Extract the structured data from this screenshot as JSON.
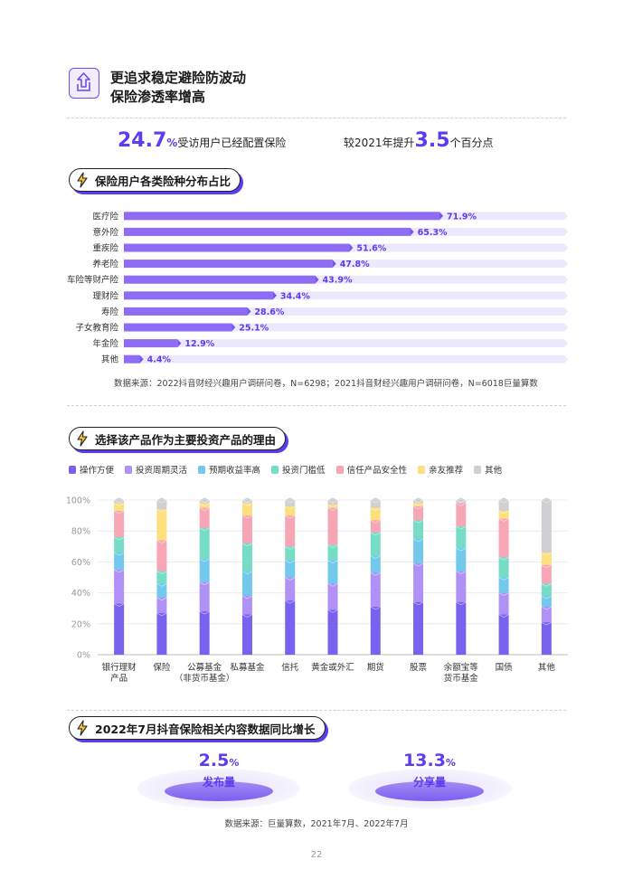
{
  "header": {
    "icon": "chart-up-icon",
    "title_line1": "更追求稳定避险防波动",
    "title_line2": "保险渗透率增高"
  },
  "stats": {
    "left_value": "24.7",
    "left_unit": "%",
    "left_text": "受访用户已经配置保险",
    "right_prefix": "较2021年提升",
    "right_value": "3.5",
    "right_suffix": "个百分点"
  },
  "section1": {
    "title": "保险用户各类险种分布占比",
    "source": "数据来源：2022抖音财经兴趣用户调研问卷，N=6298；2021抖音财经兴趣用户调研问卷，N=6018巨量算数"
  },
  "section2": {
    "title": "选择该产品作为主要投资产品的理由"
  },
  "section3": {
    "title": "2022年7月抖音保险相关内容数据同比增长",
    "metrics": [
      {
        "value": "2.5",
        "unit": "%",
        "label": "发布量"
      },
      {
        "value": "13.3",
        "unit": "%",
        "label": "分享量"
      }
    ],
    "source": "数据来源：巨量算数，2021年7月、2022年7月"
  },
  "page_number": "22",
  "chart_data": [
    {
      "type": "bar",
      "orientation": "horizontal",
      "categories": [
        "医疗险",
        "意外险",
        "重疾险",
        "养老险",
        "车险等财产险",
        "理财险",
        "寿险",
        "子女教育险",
        "年金险",
        "其他"
      ],
      "values": [
        71.9,
        65.3,
        51.6,
        47.8,
        43.9,
        34.4,
        28.6,
        25.1,
        12.9,
        4.4
      ],
      "value_labels": [
        "71.9%",
        "65.3%",
        "51.6%",
        "47.8%",
        "43.9%",
        "34.4%",
        "28.6%",
        "25.1%",
        "12.9%",
        "4.4%"
      ],
      "xlim": [
        0,
        100
      ],
      "bar_color": "#8f6cf5",
      "track_color": "#ece8fd",
      "label_color": "#5b3cf0"
    },
    {
      "type": "bar",
      "stacked": true,
      "percent": true,
      "categories": [
        [
          "银行理财",
          "产品"
        ],
        [
          "保险"
        ],
        [
          "公募基金",
          "（非货币基金）"
        ],
        [
          "私募基金"
        ],
        [
          "信托"
        ],
        [
          "黄金或外汇"
        ],
        [
          "期货"
        ],
        [
          "股票"
        ],
        [
          "余额宝等",
          "货币基金"
        ],
        [
          "国债"
        ],
        [
          "其他"
        ]
      ],
      "y_ticks": [
        "0%",
        "20%",
        "40%",
        "60%",
        "80%",
        "100%"
      ],
      "ylim": [
        0,
        100
      ],
      "legend_position": "top",
      "series": [
        {
          "name": "操作方便",
          "color": "#7b62ee",
          "values": [
            33,
            27,
            28,
            26,
            35,
            29,
            31,
            34,
            34,
            26,
            21
          ]
        },
        {
          "name": "投资周期灵活",
          "color": "#b092f7",
          "values": [
            22,
            10,
            19,
            12,
            15,
            17,
            22,
            25,
            20,
            14,
            10
          ]
        },
        {
          "name": "预期收益率高",
          "color": "#72c9ec",
          "values": [
            11,
            9,
            15,
            16,
            11,
            15,
            11,
            16,
            15,
            10,
            7
          ]
        },
        {
          "name": "投资门槛低",
          "color": "#77dcc5",
          "values": [
            10,
            8,
            20,
            18,
            9,
            10,
            15,
            12,
            14,
            13,
            8
          ]
        },
        {
          "name": "信任产品安全性",
          "color": "#f6a6b5",
          "values": [
            17,
            20,
            13,
            18,
            20,
            24,
            8,
            9,
            15,
            25,
            12
          ]
        },
        {
          "name": "亲友推荐",
          "color": "#fbe07d",
          "values": [
            5,
            20,
            3,
            8,
            6,
            2,
            8,
            2,
            0,
            5,
            8
          ]
        },
        {
          "name": "其他",
          "color": "#cfcfd4",
          "values": [
            2,
            6,
            2,
            2,
            4,
            3,
            5,
            2,
            2,
            7,
            34
          ]
        }
      ]
    }
  ]
}
